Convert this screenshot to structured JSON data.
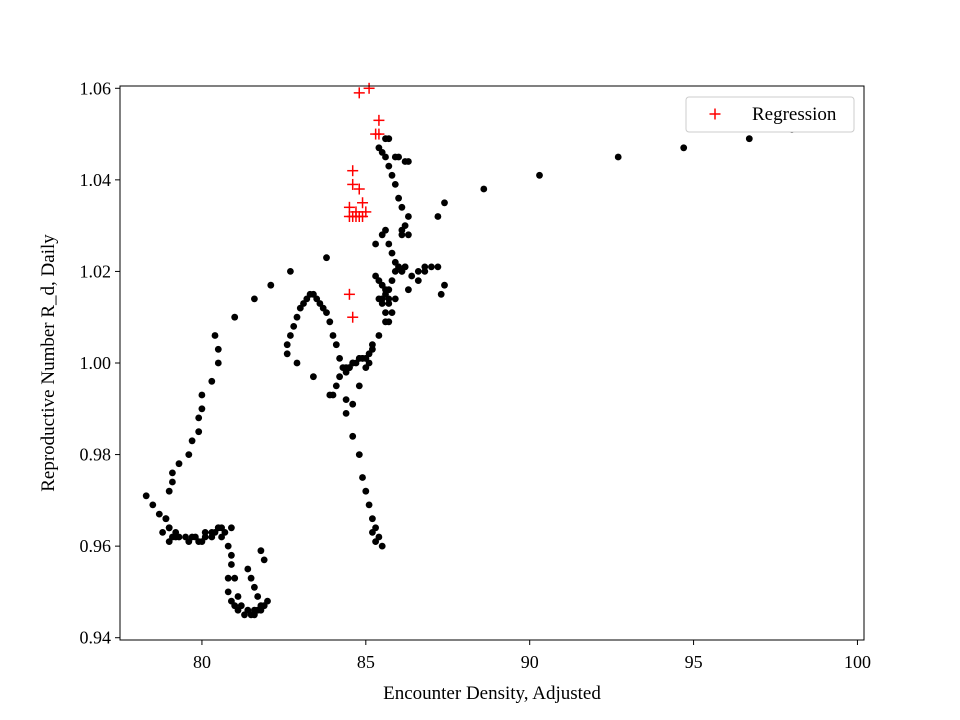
{
  "chart_data": {
    "type": "scatter",
    "title": "",
    "xlabel": "Encounter Density, Adjusted",
    "ylabel": "Reproductive Number R_d, Daily",
    "xlim": [
      77.5,
      100.2
    ],
    "ylim": [
      0.9395,
      1.0605
    ],
    "xticks": [
      80,
      85,
      90,
      95,
      100
    ],
    "yticks": [
      0.94,
      0.96,
      0.98,
      1.0,
      1.02,
      1.04,
      1.06
    ],
    "grid": false,
    "legend_position": "top-right",
    "colors": {
      "data": "#000000",
      "regression": "#ff0000"
    },
    "series": [
      {
        "name": "",
        "marker": "circle",
        "x": [
          78.3,
          78.5,
          78.7,
          78.9,
          79.0,
          79.2,
          78.8,
          79.0,
          79.1,
          79.3,
          79.6,
          80.0,
          80.1,
          80.3,
          80.5,
          80.6,
          80.8,
          80.9,
          81.0,
          81.1,
          81.2,
          81.4,
          81.6,
          81.8,
          81.9,
          81.7,
          81.6,
          81.5,
          81.4,
          81.5,
          81.6,
          81.7,
          81.8,
          82.0,
          81.9,
          81.8,
          81.3,
          81.1,
          81.0,
          80.9,
          80.8,
          80.8,
          80.9,
          80.9,
          80.7,
          80.6,
          80.5,
          80.4,
          80.3,
          80.1,
          79.9,
          79.8,
          79.7,
          79.5,
          79.2,
          79.0,
          78.9,
          79.0,
          79.1,
          79.1,
          79.3,
          79.6,
          79.7,
          79.9,
          79.9,
          80.0,
          80.0,
          80.3,
          80.5,
          80.5,
          80.4,
          81.0,
          81.6,
          82.1,
          82.7,
          83.8,
          85.3,
          85.5,
          85.6,
          85.7,
          85.8,
          85.9,
          86.0,
          86.1,
          86.1,
          86.2,
          86.2,
          86.3,
          86.3,
          86.1,
          86.0,
          85.9,
          85.8,
          85.7,
          85.6,
          85.5,
          85.4,
          85.6,
          85.7,
          85.9,
          86.0,
          86.2,
          86.3,
          86.2,
          86.1,
          86.1,
          86.0,
          85.9,
          85.8,
          85.7,
          85.6,
          85.5,
          85.4,
          85.5,
          85.6,
          85.7,
          85.7,
          85.6,
          85.5,
          85.4,
          85.3,
          85.2,
          85.1,
          85.0,
          84.9,
          84.8,
          84.7,
          84.6,
          84.5,
          84.5,
          84.4,
          84.3,
          84.2,
          84.1,
          84.0,
          83.9,
          83.8,
          83.7,
          83.6,
          83.5,
          83.4,
          83.3,
          83.2,
          83.1,
          83.0,
          82.9,
          82.8,
          82.7,
          82.6,
          82.6,
          82.9,
          83.4,
          83.9,
          84.4,
          84.6,
          84.8,
          84.9,
          85.0,
          85.1,
          85.2,
          85.3,
          85.4,
          85.5,
          85.3,
          85.2,
          85.1,
          85.0,
          84.9,
          84.8,
          84.6,
          84.4,
          84.2,
          84.1,
          84.0,
          84.4,
          84.6,
          84.8,
          85.0,
          85.2,
          85.4,
          85.6,
          85.7,
          85.8,
          85.9,
          86.3,
          86.6,
          86.8,
          87.0,
          87.2,
          87.3,
          87.4,
          86.4,
          86.6,
          86.8,
          87.2,
          87.4,
          88.6,
          90.3,
          92.7,
          94.7,
          96.7,
          98.0,
          98.7,
          99.1
        ],
        "y": [
          0.971,
          0.969,
          0.967,
          0.966,
          0.964,
          0.962,
          0.963,
          0.961,
          0.962,
          0.962,
          0.961,
          0.961,
          0.963,
          0.963,
          0.964,
          0.962,
          0.96,
          0.958,
          0.953,
          0.949,
          0.947,
          0.946,
          0.946,
          0.947,
          0.947,
          0.949,
          0.951,
          0.953,
          0.955,
          0.945,
          0.945,
          0.946,
          0.946,
          0.948,
          0.957,
          0.959,
          0.945,
          0.946,
          0.947,
          0.948,
          0.95,
          0.953,
          0.956,
          0.964,
          0.963,
          0.964,
          0.964,
          0.963,
          0.962,
          0.962,
          0.961,
          0.962,
          0.962,
          0.962,
          0.963,
          0.964,
          0.966,
          0.972,
          0.974,
          0.976,
          0.978,
          0.98,
          0.983,
          0.985,
          0.988,
          0.99,
          0.993,
          0.996,
          1.0,
          1.003,
          1.006,
          1.01,
          1.014,
          1.017,
          1.02,
          1.023,
          1.026,
          1.028,
          1.029,
          1.026,
          1.024,
          1.022,
          1.021,
          1.02,
          1.02,
          1.021,
          1.021,
          1.028,
          1.032,
          1.034,
          1.036,
          1.039,
          1.041,
          1.043,
          1.045,
          1.046,
          1.047,
          1.049,
          1.049,
          1.045,
          1.045,
          1.044,
          1.044,
          1.03,
          1.029,
          1.028,
          1.021,
          1.02,
          1.018,
          1.016,
          1.015,
          1.014,
          1.014,
          1.013,
          1.011,
          1.013,
          1.014,
          1.016,
          1.017,
          1.018,
          1.019,
          1.004,
          1.002,
          1.001,
          1.001,
          1.001,
          1.0,
          1.0,
          0.999,
          0.999,
          0.999,
          0.999,
          1.001,
          1.004,
          1.006,
          1.009,
          1.011,
          1.012,
          1.013,
          1.014,
          1.015,
          1.015,
          1.014,
          1.013,
          1.012,
          1.01,
          1.008,
          1.006,
          1.004,
          1.002,
          1.0,
          0.997,
          0.993,
          0.989,
          0.984,
          0.98,
          0.975,
          0.972,
          0.969,
          0.966,
          0.964,
          0.962,
          0.96,
          0.961,
          0.963,
          1.0,
          1.001,
          1.001,
          1.001,
          1.0,
          0.998,
          0.997,
          0.995,
          0.993,
          0.992,
          0.991,
          0.995,
          0.999,
          1.003,
          1.006,
          1.009,
          1.009,
          1.011,
          1.014,
          1.016,
          1.018,
          1.02,
          1.021,
          1.021,
          1.015,
          1.017,
          1.019,
          1.02,
          1.021,
          1.032,
          1.035,
          1.038,
          1.041,
          1.045,
          1.047,
          1.049,
          1.051,
          1.053,
          1.053
        ]
      },
      {
        "name": "Regression",
        "marker": "plus",
        "x": [
          84.8,
          85.1,
          85.4,
          85.3,
          85.4,
          84.6,
          84.6,
          84.8,
          84.9,
          85.0,
          84.8,
          84.7,
          84.5,
          84.6,
          84.5,
          84.7,
          84.9,
          84.5,
          84.6
        ],
        "y": [
          1.059,
          1.06,
          1.053,
          1.05,
          1.05,
          1.042,
          1.039,
          1.038,
          1.035,
          1.033,
          1.032,
          1.033,
          1.032,
          1.032,
          1.034,
          1.032,
          1.032,
          1.015,
          1.01
        ]
      }
    ],
    "legend": [
      {
        "label": "Regression",
        "marker": "plus",
        "color": "#ff0000"
      }
    ]
  }
}
